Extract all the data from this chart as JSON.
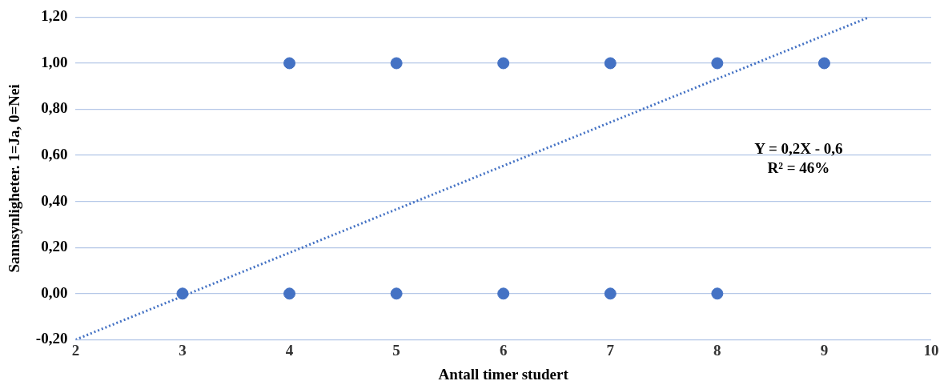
{
  "chart_data": {
    "type": "scatter",
    "xlabel": "Antall timer studert",
    "ylabel": "Sannsynligheter. 1=Ja, 0=Nei",
    "xlim": [
      2,
      10
    ],
    "xticks": [
      2,
      3,
      4,
      5,
      6,
      7,
      8,
      9,
      10
    ],
    "ylim": [
      -0.2,
      1.2
    ],
    "yticks": [
      {
        "value": -0.2,
        "label": "-0,20"
      },
      {
        "value": 0,
        "label": "0,00"
      },
      {
        "value": 0.2,
        "label": "0,20"
      },
      {
        "value": 0.4,
        "label": "0,40"
      },
      {
        "value": 0.6,
        "label": "0,60"
      },
      {
        "value": 0.8,
        "label": "0,80"
      },
      {
        "value": 1.0,
        "label": "1,00"
      },
      {
        "value": 1.2,
        "label": "1,20"
      }
    ],
    "grid": "y",
    "legend": false,
    "marker": "circle",
    "series": [
      {
        "type": "scatter",
        "color": "#4472c4",
        "x": [
          3,
          4,
          5,
          6,
          7,
          8,
          4,
          5,
          6,
          7,
          8,
          9
        ],
        "values": [
          0,
          0,
          0,
          0,
          0,
          0,
          1,
          1,
          1,
          1,
          1,
          1
        ]
      },
      {
        "type": "line",
        "color": "#4472c4",
        "line_style": "dotted",
        "marker": "none",
        "x": [
          2,
          9.42
        ],
        "values": [
          -0.2,
          1.2
        ]
      }
    ],
    "annotations": [
      "Y = 0,2X - 0,6",
      "R² = 46%"
    ]
  }
}
